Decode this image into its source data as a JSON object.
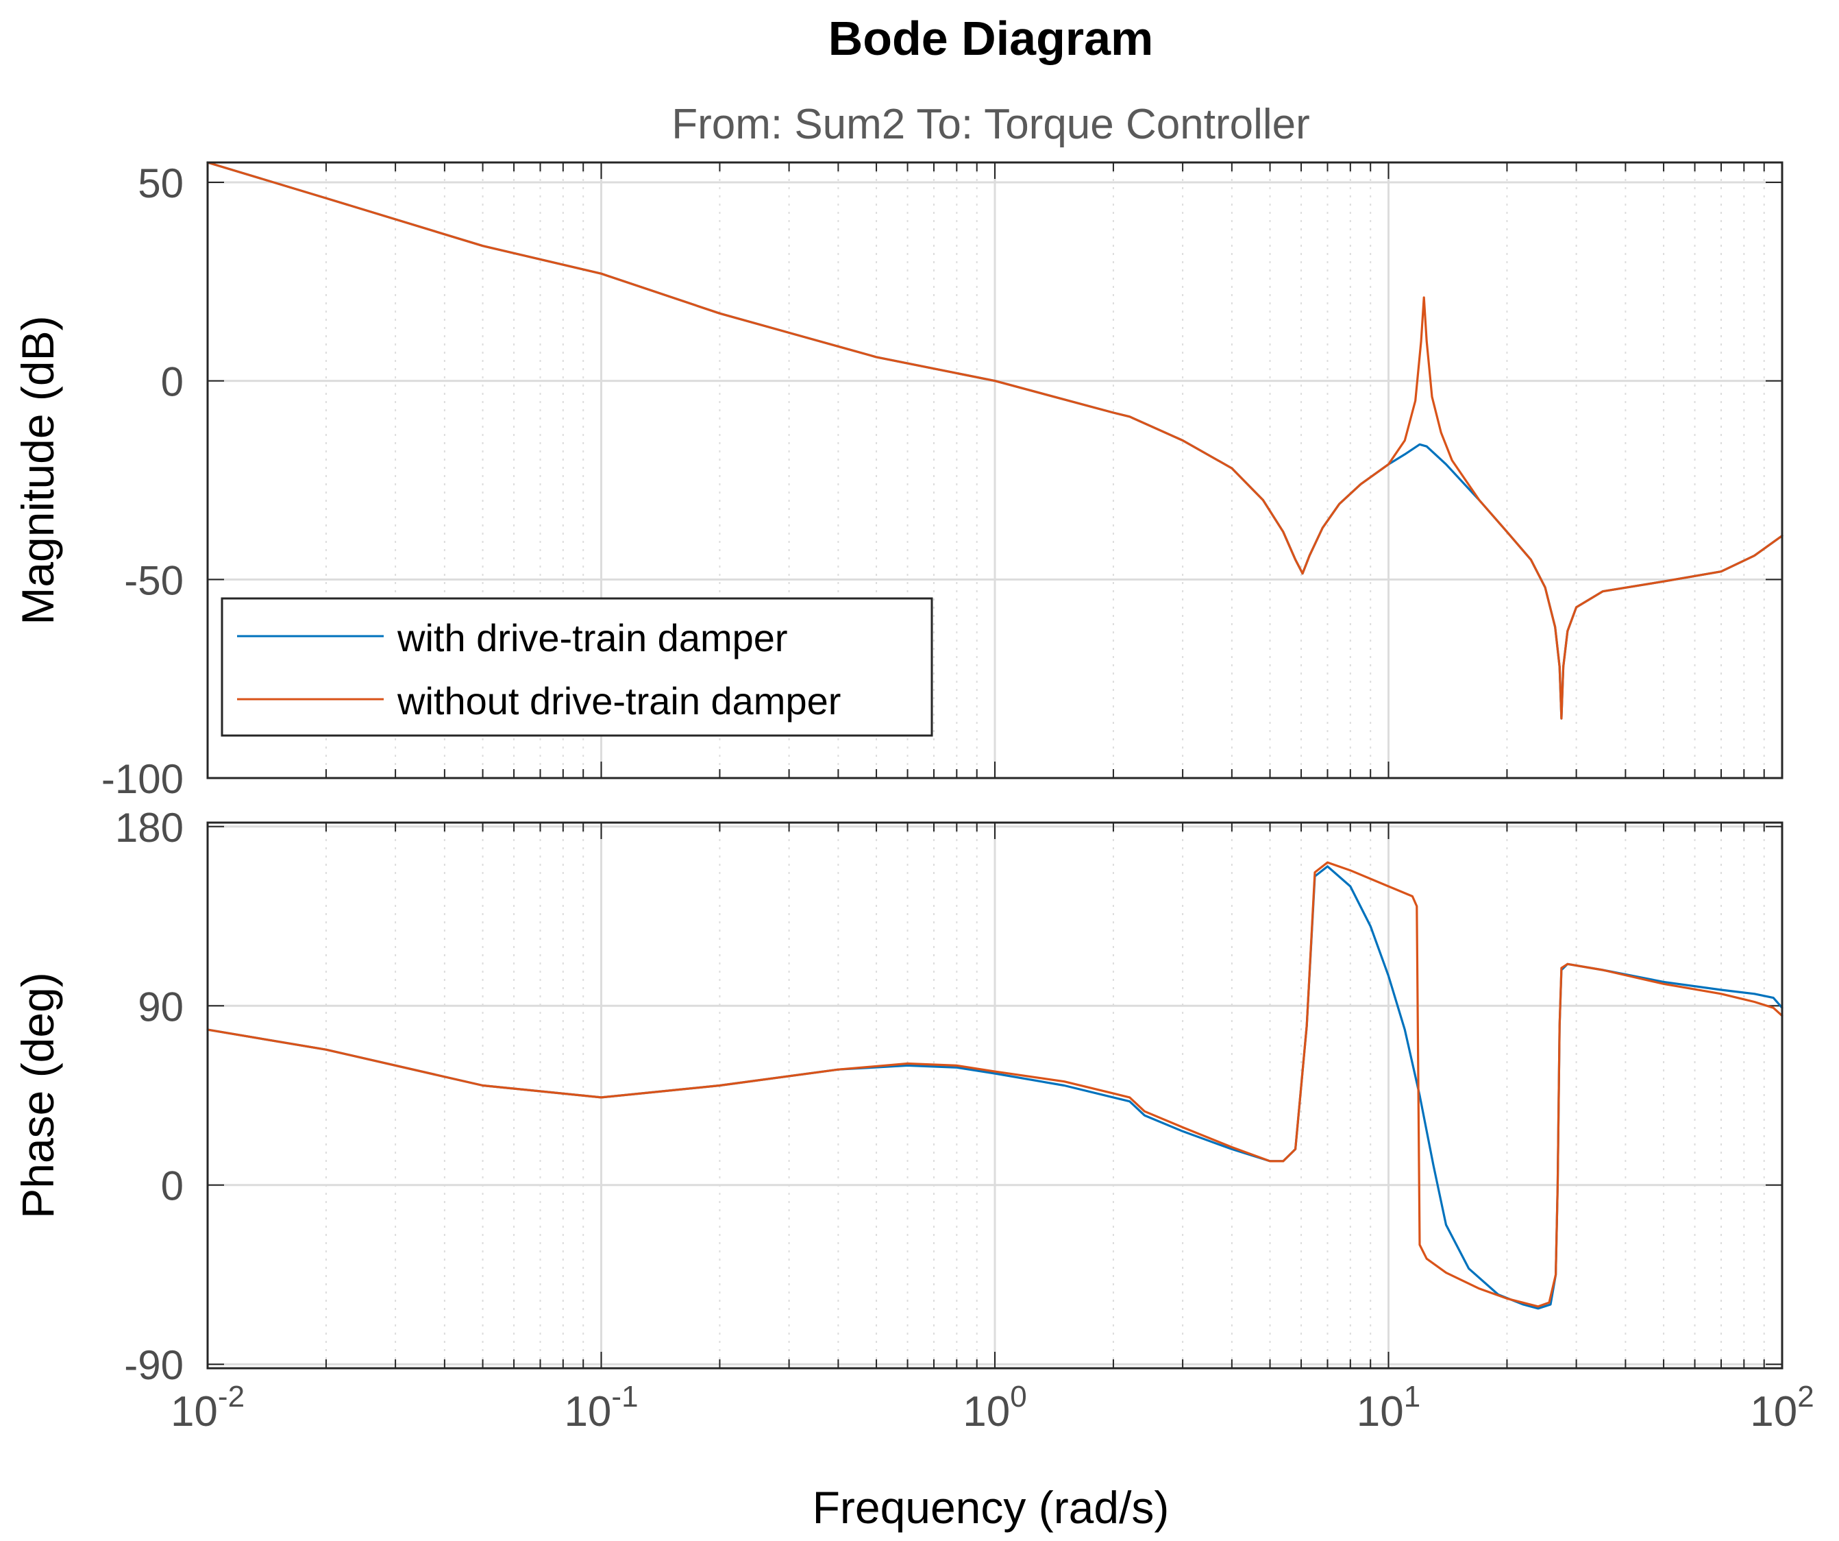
{
  "chart_data": {
    "type": "line",
    "title": "Bode Diagram",
    "subtitle": "From: Sum2  To: Torque Controller",
    "xlabel": "Frequency  (rad/s)",
    "xscale": "log",
    "xlim": [
      0.01,
      100
    ],
    "x_ticks": [
      {
        "base": "10",
        "exp": "-2"
      },
      {
        "base": "10",
        "exp": "-1"
      },
      {
        "base": "10",
        "exp": "0"
      },
      {
        "base": "10",
        "exp": "1"
      },
      {
        "base": "10",
        "exp": "2"
      }
    ],
    "colors": {
      "with_damper": "#0072BD",
      "without_damper": "#D95319"
    },
    "legend": {
      "location": "bottom-left of magnitude panel",
      "entries": [
        "with drive-train damper",
        "without drive-train damper"
      ]
    },
    "panels": [
      {
        "name": "magnitude",
        "ylabel": "Magnitude (dB)",
        "ylim": [
          -100,
          55
        ],
        "yticks": [
          50,
          0,
          -50,
          -100
        ],
        "ytick_labels": [
          "50",
          "0",
          "-50",
          "-100"
        ],
        "series": [
          {
            "name": "with drive-train damper",
            "color": "#0072BD",
            "points": [
              [
                0.01,
                55
              ],
              [
                0.02,
                46
              ],
              [
                0.05,
                34
              ],
              [
                0.1,
                27
              ],
              [
                0.2,
                17
              ],
              [
                0.5,
                6
              ],
              [
                1,
                0
              ],
              [
                2,
                -8
              ],
              [
                2.2,
                -9
              ],
              [
                3,
                -15
              ],
              [
                4,
                -22
              ],
              [
                4.8,
                -30
              ],
              [
                5.4,
                -38
              ],
              [
                5.8,
                -45
              ],
              [
                6.05,
                -48.5
              ],
              [
                6.3,
                -44
              ],
              [
                6.8,
                -37
              ],
              [
                7.5,
                -31
              ],
              [
                8.5,
                -26
              ],
              [
                10,
                -21
              ],
              [
                11,
                -18.5
              ],
              [
                12,
                -16
              ],
              [
                12.5,
                -16.5
              ],
              [
                14,
                -21
              ],
              [
                17,
                -30
              ],
              [
                20,
                -38
              ],
              [
                23,
                -45
              ],
              [
                25,
                -52
              ],
              [
                26.5,
                -62
              ],
              [
                27.2,
                -72
              ],
              [
                27.5,
                -85
              ],
              [
                27.8,
                -72
              ],
              [
                28.5,
                -63
              ],
              [
                30,
                -57
              ],
              [
                35,
                -53
              ],
              [
                50,
                -50.5
              ],
              [
                70,
                -48
              ],
              [
                85,
                -44
              ],
              [
                100,
                -39
              ]
            ]
          },
          {
            "name": "without drive-train damper",
            "color": "#D95319",
            "points": [
              [
                0.01,
                55
              ],
              [
                0.02,
                46
              ],
              [
                0.05,
                34
              ],
              [
                0.1,
                27
              ],
              [
                0.2,
                17
              ],
              [
                0.5,
                6
              ],
              [
                1,
                0
              ],
              [
                2,
                -8
              ],
              [
                2.2,
                -9
              ],
              [
                3,
                -15
              ],
              [
                4,
                -22
              ],
              [
                4.8,
                -30
              ],
              [
                5.4,
                -38
              ],
              [
                5.8,
                -45
              ],
              [
                6.05,
                -48.5
              ],
              [
                6.3,
                -44
              ],
              [
                6.8,
                -37
              ],
              [
                7.5,
                -31
              ],
              [
                8.5,
                -26
              ],
              [
                10,
                -21
              ],
              [
                11,
                -15
              ],
              [
                11.7,
                -5
              ],
              [
                12.1,
                10
              ],
              [
                12.3,
                21
              ],
              [
                12.5,
                10
              ],
              [
                12.9,
                -4
              ],
              [
                13.6,
                -13
              ],
              [
                14.5,
                -20
              ],
              [
                17,
                -30
              ],
              [
                20,
                -38
              ],
              [
                23,
                -45
              ],
              [
                25,
                -52
              ],
              [
                26.5,
                -62
              ],
              [
                27.2,
                -72
              ],
              [
                27.5,
                -85
              ],
              [
                27.8,
                -72
              ],
              [
                28.5,
                -63
              ],
              [
                30,
                -57
              ],
              [
                35,
                -53
              ],
              [
                50,
                -50.5
              ],
              [
                70,
                -48
              ],
              [
                85,
                -44
              ],
              [
                100,
                -39
              ]
            ]
          }
        ]
      },
      {
        "name": "phase",
        "ylabel": "Phase (deg)",
        "ylim": [
          -92,
          182
        ],
        "yticks": [
          180,
          90,
          0,
          -90
        ],
        "ytick_labels": [
          "180",
          "90",
          "0",
          "-90"
        ],
        "series": [
          {
            "name": "with drive-train damper",
            "color": "#0072BD",
            "points": [
              [
                0.01,
                78
              ],
              [
                0.02,
                68
              ],
              [
                0.05,
                50
              ],
              [
                0.1,
                44
              ],
              [
                0.2,
                50
              ],
              [
                0.4,
                58
              ],
              [
                0.6,
                60
              ],
              [
                0.8,
                59
              ],
              [
                1,
                56
              ],
              [
                1.5,
                50
              ],
              [
                2,
                44
              ],
              [
                2.2,
                42
              ],
              [
                2.4,
                35
              ],
              [
                3,
                27
              ],
              [
                4,
                18
              ],
              [
                5,
                12
              ],
              [
                5.4,
                12
              ],
              [
                5.8,
                18
              ],
              [
                6.2,
                80
              ],
              [
                6.5,
                155
              ],
              [
                7,
                160
              ],
              [
                8,
                150
              ],
              [
                9,
                130
              ],
              [
                10,
                105
              ],
              [
                11,
                78
              ],
              [
                12,
                45
              ],
              [
                13,
                10
              ],
              [
                14,
                -20
              ],
              [
                16,
                -42
              ],
              [
                19,
                -55
              ],
              [
                22,
                -60
              ],
              [
                24,
                -62
              ],
              [
                25.8,
                -60
              ],
              [
                26.6,
                -45
              ],
              [
                26.9,
                0
              ],
              [
                27.2,
                80
              ],
              [
                27.5,
                108
              ],
              [
                28.5,
                111
              ],
              [
                35,
                108
              ],
              [
                50,
                102
              ],
              [
                70,
                98
              ],
              [
                85,
                96
              ],
              [
                95,
                94
              ],
              [
                100,
                89
              ]
            ]
          },
          {
            "name": "without drive-train damper",
            "color": "#D95319",
            "points": [
              [
                0.01,
                78
              ],
              [
                0.02,
                68
              ],
              [
                0.05,
                50
              ],
              [
                0.1,
                44
              ],
              [
                0.2,
                50
              ],
              [
                0.4,
                58
              ],
              [
                0.6,
                61
              ],
              [
                0.8,
                60
              ],
              [
                1,
                57
              ],
              [
                1.5,
                52
              ],
              [
                2,
                46
              ],
              [
                2.2,
                44
              ],
              [
                2.4,
                37
              ],
              [
                3,
                29
              ],
              [
                4,
                19
              ],
              [
                5,
                12
              ],
              [
                5.4,
                12
              ],
              [
                5.8,
                18
              ],
              [
                6.2,
                80
              ],
              [
                6.5,
                157
              ],
              [
                7,
                162
              ],
              [
                8,
                158
              ],
              [
                10,
                150
              ],
              [
                11.5,
                145
              ],
              [
                11.8,
                140
              ],
              [
                12,
                -30
              ],
              [
                12.5,
                -37
              ],
              [
                14,
                -44
              ],
              [
                17,
                -52
              ],
              [
                20,
                -57
              ],
              [
                24,
                -61
              ],
              [
                25.6,
                -59
              ],
              [
                26.6,
                -45
              ],
              [
                26.9,
                0
              ],
              [
                27.2,
                80
              ],
              [
                27.5,
                109
              ],
              [
                28.5,
                111
              ],
              [
                35,
                108
              ],
              [
                50,
                101
              ],
              [
                70,
                96
              ],
              [
                85,
                92
              ],
              [
                95,
                89
              ],
              [
                100,
                85
              ]
            ]
          }
        ]
      }
    ]
  }
}
